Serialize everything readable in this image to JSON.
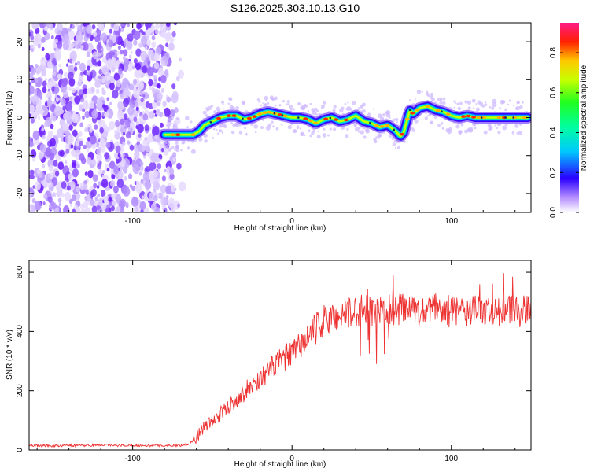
{
  "title": "S126.2025.303.10.13.G10",
  "chart_data": [
    {
      "type": "heatmap",
      "xlabel": "Height of straight line (km)",
      "ylabel": "Frequency (Hz)",
      "xlim": [
        -165,
        150
      ],
      "ylim": [
        -25,
        25
      ],
      "xticks": [
        -100,
        0,
        100
      ],
      "xtick_labels": [
        "-100",
        "0",
        "100"
      ],
      "yticks": [
        -20,
        -10,
        0,
        10,
        20
      ],
      "ytick_labels": [
        "-20",
        "-10",
        "0",
        "10",
        "20"
      ],
      "colorbar": {
        "label": "Normalized spectral amplitude",
        "range": [
          0,
          0.95
        ],
        "ticks": [
          0.0,
          0.2,
          0.4,
          0.6,
          0.8
        ],
        "tick_labels": [
          "0.0",
          "0.2",
          "0.4",
          "0.6",
          "0.8"
        ]
      },
      "noise_region_x": [
        -165,
        -72
      ],
      "ridge": {
        "x": [
          -80,
          -68,
          -62,
          -58,
          -55,
          -50,
          -45,
          -40,
          -35,
          -30,
          -25,
          -20,
          -15,
          -10,
          -5,
          0,
          5,
          10,
          15,
          20,
          25,
          30,
          35,
          40,
          45,
          50,
          55,
          60,
          65,
          68,
          70,
          72,
          74,
          76,
          80,
          85,
          90,
          95,
          100,
          105,
          110,
          115,
          120,
          130,
          140,
          148
        ],
        "y": [
          -4.5,
          -4.5,
          -4.5,
          -3.5,
          -2,
          -1,
          0,
          0.5,
          0.5,
          -0.5,
          0,
          1,
          1.5,
          1,
          0.5,
          0,
          0,
          -0.5,
          -1.5,
          -0.5,
          0,
          -1,
          -0.5,
          0.5,
          -1,
          -1.5,
          -2.5,
          -2,
          -3.5,
          -5,
          -4,
          -1,
          2,
          1,
          2.5,
          3,
          2,
          1.5,
          0.5,
          0,
          0.5,
          0,
          0,
          0,
          0,
          0
        ]
      }
    },
    {
      "type": "line",
      "xlabel": "Height of straight line (km)",
      "ylabel": "SNR (10 * v/v)",
      "xlim": [
        -165,
        150
      ],
      "ylim": [
        0,
        640
      ],
      "xticks": [
        -100,
        0,
        100
      ],
      "xtick_labels": [
        "-100",
        "0",
        "100"
      ],
      "yticks": [
        0,
        200,
        400,
        600
      ],
      "ytick_labels": [
        "0",
        "200",
        "400",
        "600"
      ],
      "color": "#ee3333",
      "series": [
        {
          "name": "SNR",
          "x": [
            -165,
            -150,
            -140,
            -130,
            -120,
            -110,
            -100,
            -90,
            -80,
            -70,
            -65,
            -60,
            -58,
            -55,
            -50,
            -45,
            -40,
            -35,
            -30,
            -25,
            -20,
            -15,
            -10,
            -5,
            0,
            5,
            10,
            15,
            20,
            25,
            30,
            35,
            40,
            45,
            50,
            55,
            60,
            65,
            70,
            75,
            80,
            85,
            90,
            95,
            100,
            105,
            110,
            115,
            120,
            125,
            130,
            135,
            140,
            145,
            150
          ],
          "values": [
            15,
            14,
            16,
            15,
            17,
            15,
            16,
            15,
            15,
            16,
            20,
            40,
            60,
            80,
            95,
            120,
            145,
            170,
            195,
            220,
            240,
            265,
            290,
            310,
            325,
            350,
            380,
            410,
            430,
            445,
            455,
            460,
            468,
            472,
            470,
            475,
            470,
            473,
            478,
            468,
            462,
            470,
            475,
            470,
            468,
            465,
            470,
            468,
            470,
            472,
            470,
            465,
            470,
            468,
            470
          ]
        }
      ]
    }
  ]
}
